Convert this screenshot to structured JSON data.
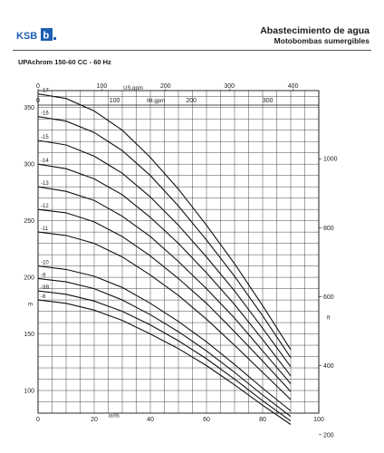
{
  "header": {
    "brand": "KSB",
    "title": "Abastecimiento de agua",
    "subtitle": "Motobombas sumergibles"
  },
  "chart_data": {
    "type": "line",
    "title": "UPAchrom 150-60 CC - 60 Hz",
    "x_bottom": {
      "label": "m³/h",
      "ticks": [
        0,
        20,
        40,
        60,
        80,
        100
      ],
      "range": [
        0,
        100
      ]
    },
    "x_top_us": {
      "label": "US.gpm",
      "ticks": [
        0,
        100,
        200,
        300,
        400
      ],
      "per_m3h": 4.403
    },
    "x_top_im": {
      "label": "IM.gpm",
      "ticks": [
        0,
        100,
        200,
        300
      ],
      "per_m3h": 3.666
    },
    "y_left": {
      "label": "m",
      "ticks": [
        100,
        150,
        200,
        250,
        300,
        350
      ],
      "range": [
        80,
        365
      ]
    },
    "y_right": {
      "label": "ft",
      "ticks": [
        200,
        400,
        600,
        800,
        1000
      ],
      "per_m": 3.281
    },
    "grid": true,
    "x": [
      0,
      10,
      20,
      30,
      40,
      50,
      60,
      70,
      80,
      90
    ],
    "series": [
      {
        "name": "-17",
        "values": [
          362,
          358,
          347,
          330,
          306,
          278,
          246,
          212,
          175,
          136
        ]
      },
      {
        "name": "-16",
        "values": [
          342,
          338,
          328,
          312,
          290,
          263,
          233,
          201,
          166,
          129
        ]
      },
      {
        "name": "-15",
        "values": [
          321,
          317,
          307,
          292,
          271,
          246,
          218,
          188,
          155,
          121
        ]
      },
      {
        "name": "-14",
        "values": [
          300,
          296,
          287,
          273,
          253,
          230,
          204,
          176,
          145,
          113
        ]
      },
      {
        "name": "-13",
        "values": [
          280,
          276,
          268,
          254,
          236,
          214,
          190,
          164,
          135,
          106
        ]
      },
      {
        "name": "-12",
        "values": [
          260,
          257,
          249,
          236,
          219,
          199,
          177,
          152,
          126,
          99
        ]
      },
      {
        "name": "-11",
        "values": [
          240,
          237,
          230,
          218,
          202,
          184,
          163,
          140,
          116,
          92
        ]
      },
      {
        "name": "-10",
        "values": [
          210,
          207,
          201,
          191,
          177,
          161,
          143,
          123,
          102,
          82
        ]
      },
      {
        "name": "-9",
        "values": [
          199,
          196,
          190,
          180,
          167,
          152,
          135,
          116,
          96,
          77
        ]
      },
      {
        "name": "-9B",
        "values": [
          188,
          185,
          179,
          170,
          158,
          144,
          128,
          110,
          91,
          73
        ]
      },
      {
        "name": "-8",
        "values": [
          180,
          177,
          171,
          162,
          150,
          137,
          122,
          105,
          87,
          70
        ]
      }
    ]
  }
}
